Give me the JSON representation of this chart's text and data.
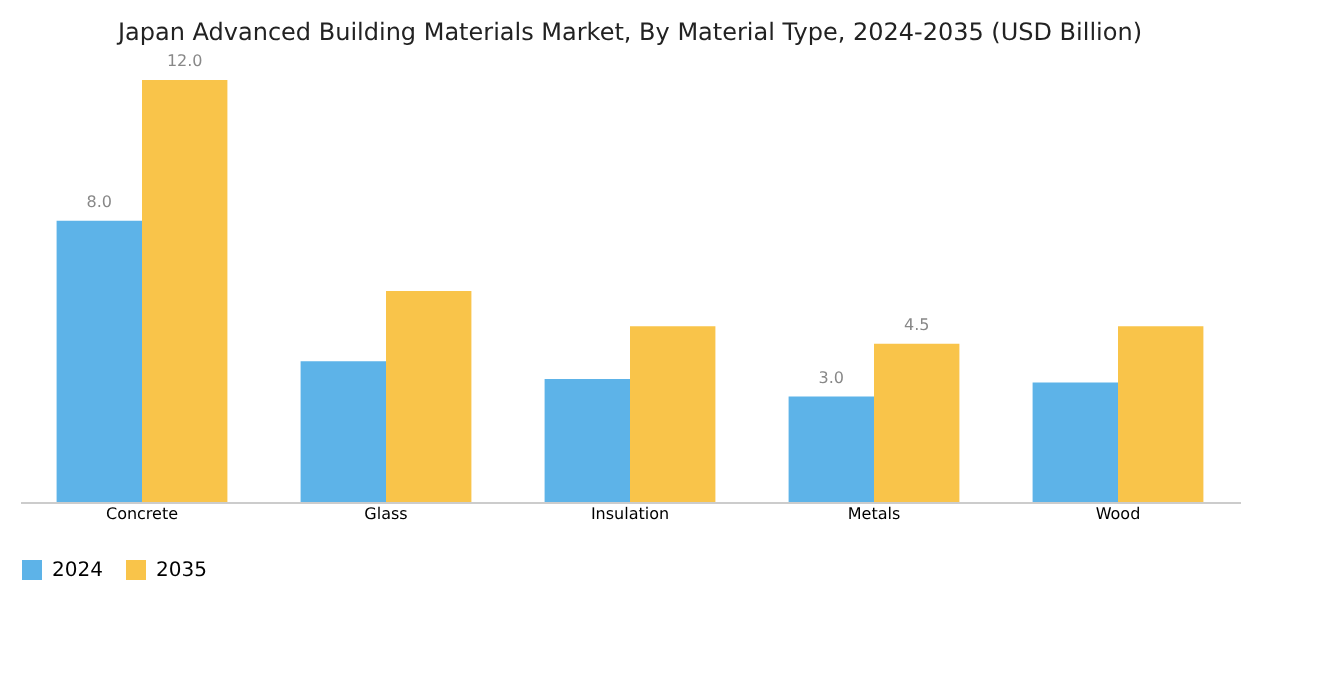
{
  "chart_data": {
    "type": "bar",
    "title": "Japan Advanced Building Materials Market, By Material Type, 2024-2035 (USD Billion)",
    "categories": [
      "Concrete",
      "Glass",
      "Insulation",
      "Metals",
      "Wood"
    ],
    "series": [
      {
        "name": "2024",
        "color": "#5db3e8",
        "values": [
          8.0,
          4.0,
          3.5,
          3.0,
          3.4
        ],
        "value_labels": [
          "8.0",
          null,
          null,
          "3.0",
          null
        ]
      },
      {
        "name": "2035",
        "color": "#f9c44a",
        "values": [
          12.0,
          6.0,
          5.0,
          4.5,
          5.0
        ],
        "value_labels": [
          "12.0",
          null,
          null,
          "4.5",
          null
        ]
      }
    ],
    "legend": "bottom",
    "grid": false
  }
}
